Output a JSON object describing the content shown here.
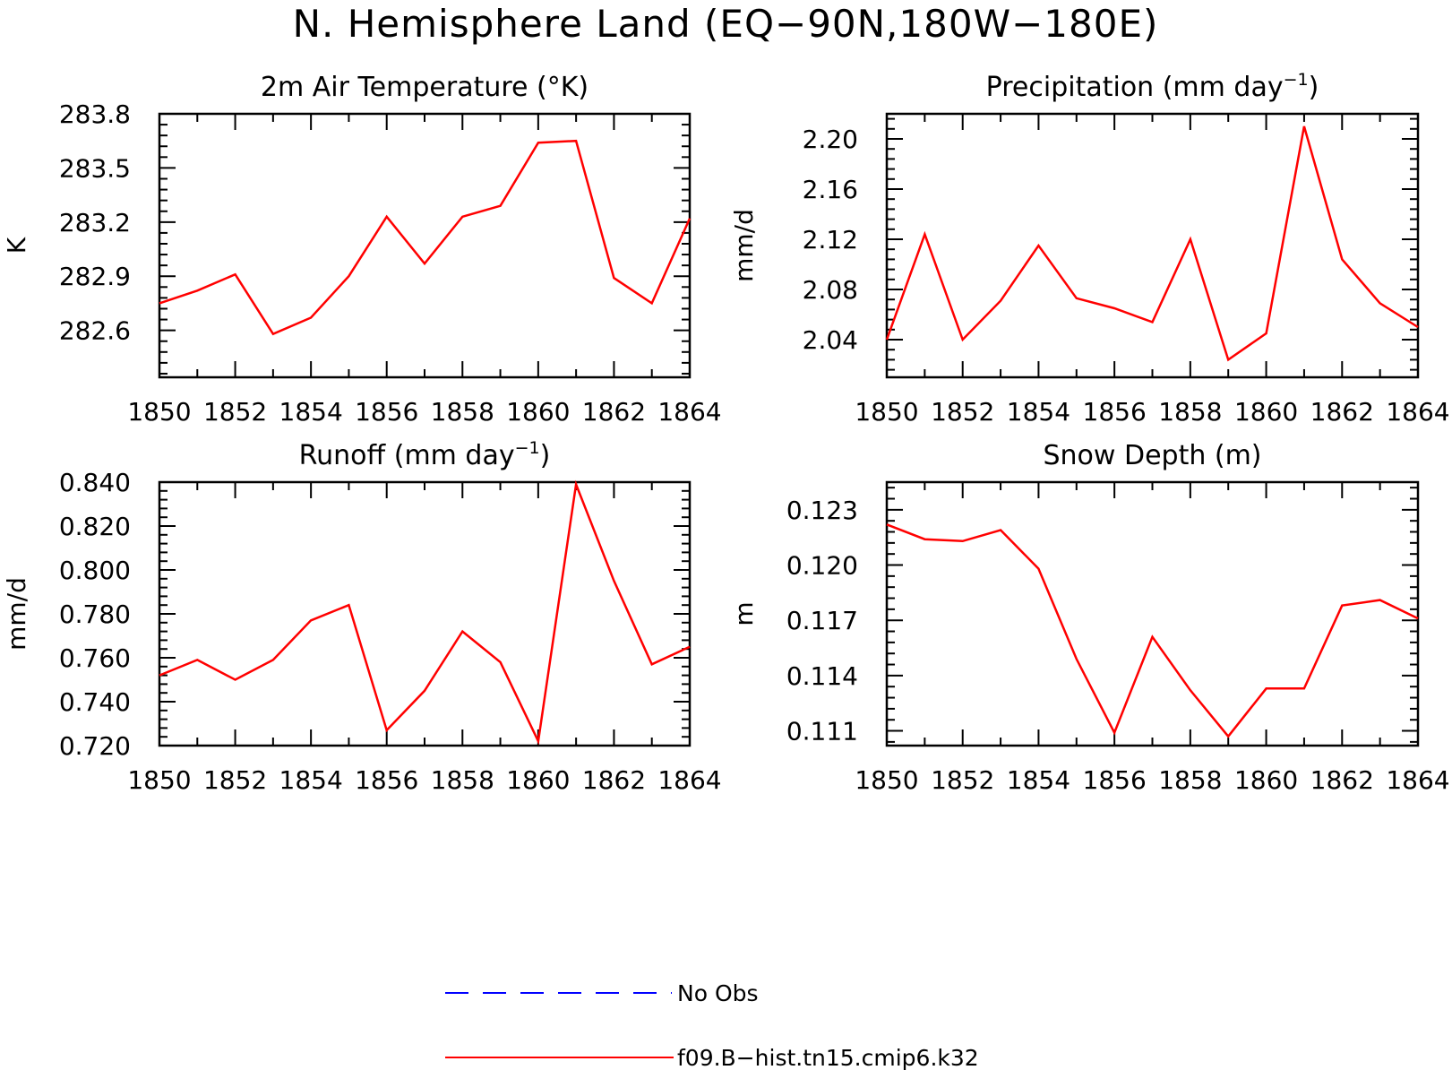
{
  "figure": {
    "title": "N. Hemisphere Land (EQ−90N,180W−180E)"
  },
  "chart_data": [
    {
      "type": "line",
      "title": "2m Air Temperature (°K)",
      "title_super": "",
      "title_tail": "",
      "ylabel": "K",
      "xlabel": "",
      "xlim": [
        1850,
        1864
      ],
      "ylim": [
        282.34,
        283.8
      ],
      "xticks": [
        1850,
        1852,
        1854,
        1856,
        1858,
        1860,
        1862,
        1864
      ],
      "xtick_labels": [
        "1850",
        "1852",
        "1854",
        "1856",
        "1858",
        "1860",
        "1862",
        "1864"
      ],
      "yticks": [
        282.6,
        282.9,
        283.2,
        283.5,
        283.8
      ],
      "ytick_labels": [
        "282.6",
        "282.9",
        "283.2",
        "283.5",
        "283.8"
      ],
      "x": [
        1850,
        1851,
        1852,
        1853,
        1854,
        1855,
        1856,
        1857,
        1858,
        1859,
        1860,
        1861,
        1862,
        1863,
        1864
      ],
      "series": [
        {
          "color": "#ff0000",
          "values": [
            282.75,
            282.82,
            282.91,
            282.58,
            282.67,
            282.9,
            283.23,
            282.97,
            283.23,
            283.29,
            283.64,
            283.65,
            282.89,
            282.75,
            283.22
          ]
        }
      ],
      "grid": false
    },
    {
      "type": "line",
      "title": "Precipitation (mm day",
      "title_super": "−1",
      "title_tail": ")",
      "ylabel": "mm/d",
      "xlabel": "",
      "xlim": [
        1850,
        1864
      ],
      "ylim": [
        2.01,
        2.22
      ],
      "xticks": [
        1850,
        1852,
        1854,
        1856,
        1858,
        1860,
        1862,
        1864
      ],
      "xtick_labels": [
        "1850",
        "1852",
        "1854",
        "1856",
        "1858",
        "1860",
        "1862",
        "1864"
      ],
      "yticks": [
        2.04,
        2.08,
        2.12,
        2.16,
        2.2
      ],
      "ytick_labels": [
        "2.04",
        "2.08",
        "2.12",
        "2.16",
        "2.20"
      ],
      "x": [
        1850,
        1851,
        1852,
        1853,
        1854,
        1855,
        1856,
        1857,
        1858,
        1859,
        1860,
        1861,
        1862,
        1863,
        1864
      ],
      "series": [
        {
          "color": "#ff0000",
          "values": [
            2.04,
            2.124,
            2.04,
            2.071,
            2.115,
            2.073,
            2.065,
            2.054,
            2.12,
            2.024,
            2.045,
            2.21,
            2.104,
            2.069,
            2.05
          ]
        }
      ],
      "grid": false
    },
    {
      "type": "line",
      "title": "Runoff (mm day",
      "title_super": "−1",
      "title_tail": ")",
      "ylabel": "mm/d",
      "xlabel": "",
      "xlim": [
        1850,
        1864
      ],
      "ylim": [
        0.72,
        0.84
      ],
      "xticks": [
        1850,
        1852,
        1854,
        1856,
        1858,
        1860,
        1862,
        1864
      ],
      "xtick_labels": [
        "1850",
        "1852",
        "1854",
        "1856",
        "1858",
        "1860",
        "1862",
        "1864"
      ],
      "yticks": [
        0.72,
        0.74,
        0.76,
        0.78,
        0.8,
        0.82,
        0.84
      ],
      "ytick_labels": [
        "0.720",
        "0.740",
        "0.760",
        "0.780",
        "0.800",
        "0.820",
        "0.840"
      ],
      "x": [
        1850,
        1851,
        1852,
        1853,
        1854,
        1855,
        1856,
        1857,
        1858,
        1859,
        1860,
        1861,
        1862,
        1863,
        1864
      ],
      "series": [
        {
          "color": "#ff0000",
          "values": [
            0.752,
            0.759,
            0.75,
            0.759,
            0.777,
            0.784,
            0.727,
            0.745,
            0.772,
            0.758,
            0.722,
            0.839,
            0.795,
            0.757,
            0.765
          ]
        }
      ],
      "grid": false
    },
    {
      "type": "line",
      "title": "Snow Depth (m)",
      "title_super": "",
      "title_tail": "",
      "ylabel": "m",
      "xlabel": "",
      "xlim": [
        1850,
        1864
      ],
      "ylim": [
        0.1102,
        0.1245
      ],
      "xticks": [
        1850,
        1852,
        1854,
        1856,
        1858,
        1860,
        1862,
        1864
      ],
      "xtick_labels": [
        "1850",
        "1852",
        "1854",
        "1856",
        "1858",
        "1860",
        "1862",
        "1864"
      ],
      "yticks": [
        0.111,
        0.114,
        0.117,
        0.12,
        0.123
      ],
      "ytick_labels": [
        "0.111",
        "0.114",
        "0.117",
        "0.120",
        "0.123"
      ],
      "x": [
        1850,
        1851,
        1852,
        1853,
        1854,
        1855,
        1856,
        1857,
        1858,
        1859,
        1860,
        1861,
        1862,
        1863,
        1864
      ],
      "series": [
        {
          "color": "#ff0000",
          "values": [
            0.1222,
            0.1214,
            0.1213,
            0.1219,
            0.1198,
            0.1149,
            0.1109,
            0.1161,
            0.1132,
            0.1107,
            0.1133,
            0.1133,
            0.1178,
            0.1181,
            0.1171
          ]
        }
      ],
      "grid": false
    }
  ],
  "legend": {
    "placement": "bottom-center",
    "entries": [
      {
        "label": "No Obs",
        "color": "#0000ff",
        "style": "dashed"
      },
      {
        "label": "f09.B−hist.tn15.cmip6.k32",
        "color": "#ff0000",
        "style": "solid"
      }
    ]
  }
}
